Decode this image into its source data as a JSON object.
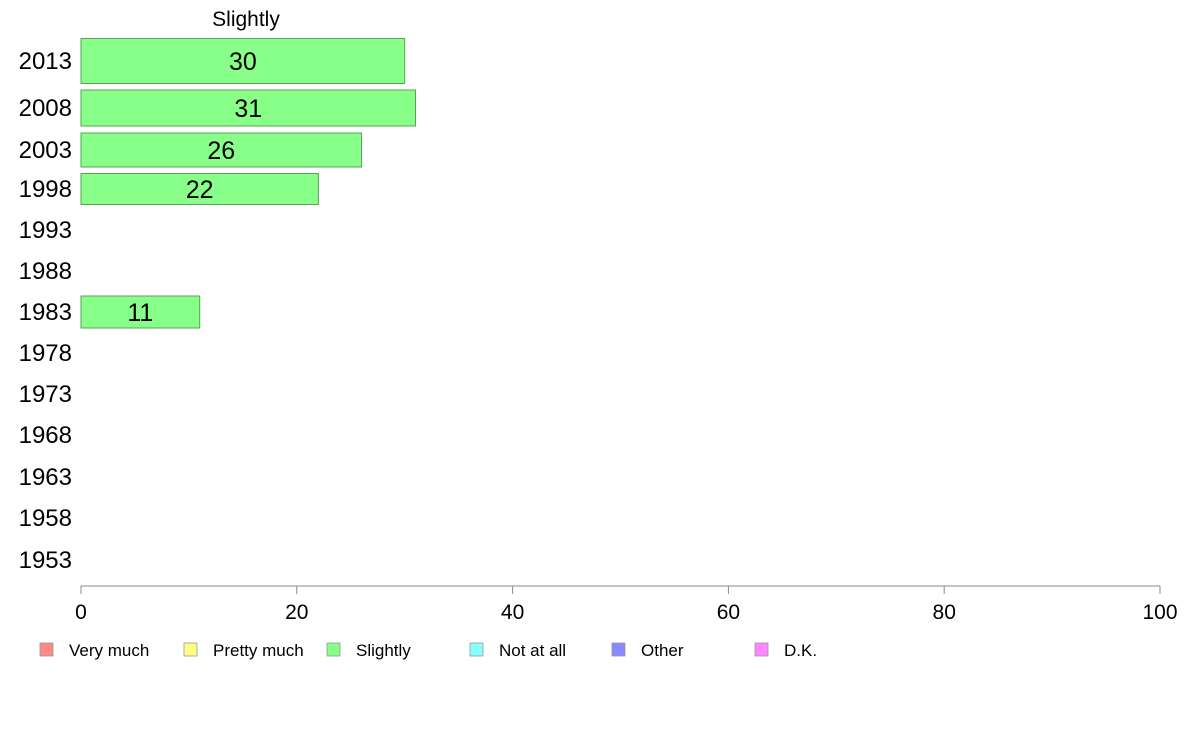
{
  "chart_data": {
    "type": "bar",
    "orientation": "horizontal",
    "title": "Slightly",
    "categories": [
      "2013",
      "2008",
      "2003",
      "1998",
      "1993",
      "1988",
      "1983",
      "1978",
      "1973",
      "1968",
      "1963",
      "1958",
      "1953"
    ],
    "series": [
      {
        "name": "Slightly",
        "color": "#88ff88",
        "values": [
          30,
          31,
          26,
          22,
          null,
          null,
          11,
          null,
          null,
          null,
          null,
          null,
          null
        ],
        "labels": [
          "30",
          "31",
          "26",
          "22",
          "",
          "",
          "11",
          "",
          "",
          "",
          "",
          "",
          ""
        ]
      }
    ],
    "xlim": [
      0,
      100
    ],
    "xticks": [
      "0",
      "20",
      "40",
      "60",
      "80",
      "100"
    ],
    "grid": false,
    "legend": {
      "placement": "bottom",
      "entries": [
        {
          "label": "Very much",
          "color": "#ff8888"
        },
        {
          "label": "Pretty much",
          "color": "#ffff88"
        },
        {
          "label": "Slightly",
          "color": "#88ff88"
        },
        {
          "label": "Not at all",
          "color": "#88ffff"
        },
        {
          "label": "Other",
          "color": "#8888ff"
        },
        {
          "label": "D.K.",
          "color": "#ff88ff"
        }
      ]
    }
  }
}
